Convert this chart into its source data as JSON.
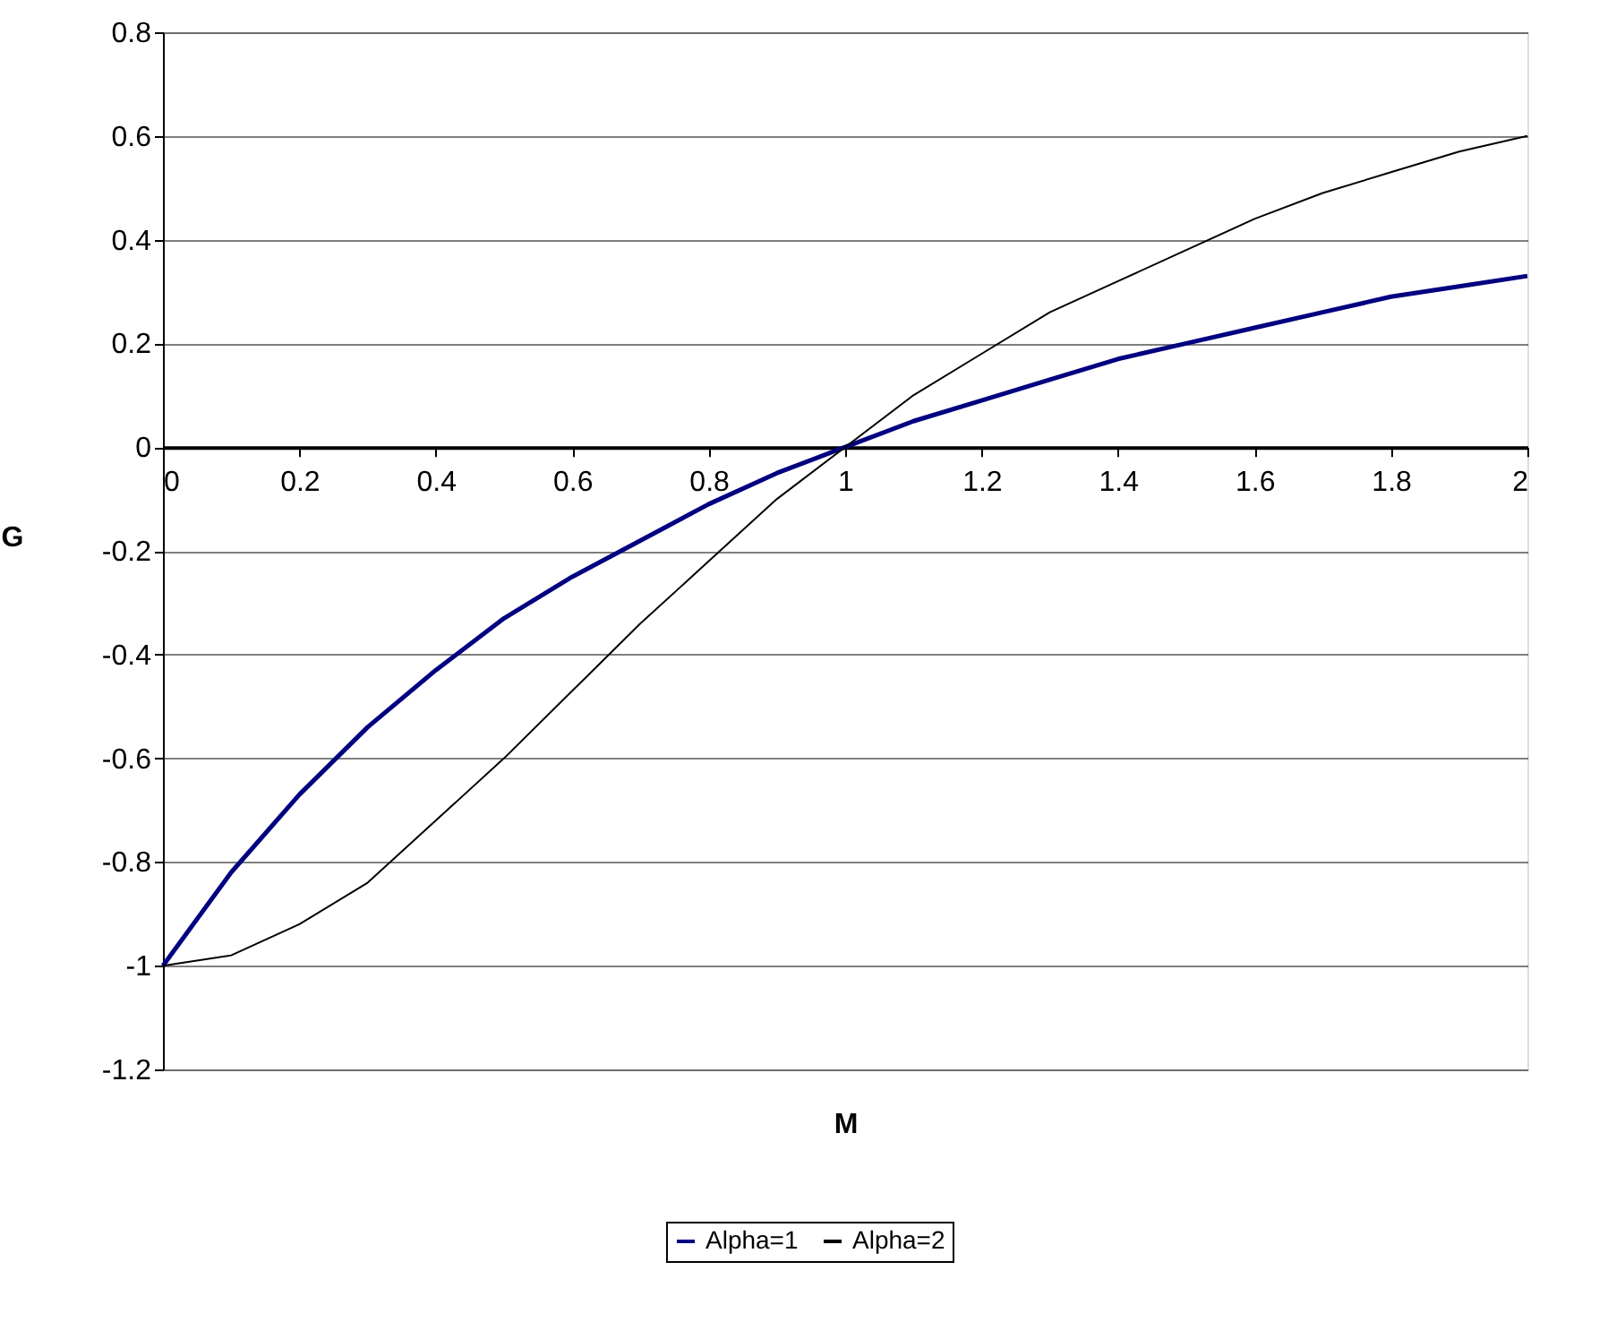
{
  "chart_data": {
    "type": "line",
    "xlabel": "M",
    "ylabel": "G",
    "x": [
      0,
      0.1,
      0.2,
      0.3,
      0.4,
      0.5,
      0.6,
      0.7,
      0.8,
      0.9,
      1,
      1.1,
      1.2,
      1.3,
      1.4,
      1.5,
      1.6,
      1.7,
      1.8,
      1.9,
      2
    ],
    "series": [
      {
        "name": "Alpha=1",
        "color": "#000080",
        "values": [
          -1,
          -0.82,
          -0.67,
          -0.54,
          -0.43,
          -0.33,
          -0.25,
          -0.18,
          -0.11,
          -0.05,
          0,
          0.05,
          0.09,
          0.13,
          0.17,
          0.2,
          0.23,
          0.26,
          0.29,
          0.31,
          0.33
        ]
      },
      {
        "name": "Alpha=2",
        "color": "#000000",
        "values": [
          -1,
          -0.98,
          -0.92,
          -0.84,
          -0.72,
          -0.6,
          -0.47,
          -0.34,
          -0.22,
          -0.1,
          0,
          0.1,
          0.18,
          0.26,
          0.32,
          0.38,
          0.44,
          0.49,
          0.53,
          0.57,
          0.6
        ]
      }
    ],
    "xlim": [
      0,
      2
    ],
    "xticks": [
      0,
      0.2,
      0.4,
      0.6,
      0.8,
      1,
      1.2,
      1.4,
      1.6,
      1.8,
      2
    ],
    "ylim": [
      -1.2,
      0.8
    ],
    "yticks": [
      -1.2,
      -1,
      -0.8,
      -0.6,
      -0.4,
      -0.2,
      0,
      0.2,
      0.4,
      0.6,
      0.8
    ],
    "grid": "y",
    "legend": "bottom",
    "line_style": "solid",
    "marker": "none"
  }
}
